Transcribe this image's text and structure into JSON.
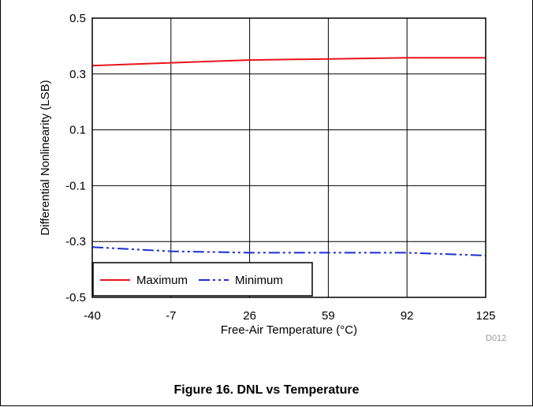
{
  "figure_caption": "Figure 16. DNL vs Temperature",
  "figure_id": "D012",
  "chart_data": {
    "type": "line",
    "title": "",
    "xlabel": "Free-Air Temperature (°C)",
    "ylabel": "Differential Nonlinearity (LSB)",
    "xlim": [
      -40,
      125
    ],
    "ylim": [
      -0.5,
      0.5
    ],
    "x_ticks": [
      -40,
      -7,
      26,
      59,
      92,
      125
    ],
    "y_ticks": [
      -0.5,
      -0.3,
      -0.1,
      0.1,
      0.3,
      0.5
    ],
    "y_tick_labels": [
      "-0.5",
      "-0.3",
      "-0.1",
      "0.1",
      "0.3",
      "0.5"
    ],
    "grid": true,
    "legend_position": "bottom-left",
    "x": [
      -40,
      -7,
      26,
      59,
      92,
      125
    ],
    "series": [
      {
        "name": "Maximum",
        "color": "#e8141c",
        "style": "solid",
        "values": [
          0.33,
          0.34,
          0.35,
          0.354,
          0.358,
          0.358
        ]
      },
      {
        "name": "Minimum",
        "color": "#1a2fd6",
        "style": "dash-dot-dot",
        "values": [
          -0.32,
          -0.335,
          -0.34,
          -0.34,
          -0.34,
          -0.35
        ]
      }
    ]
  }
}
